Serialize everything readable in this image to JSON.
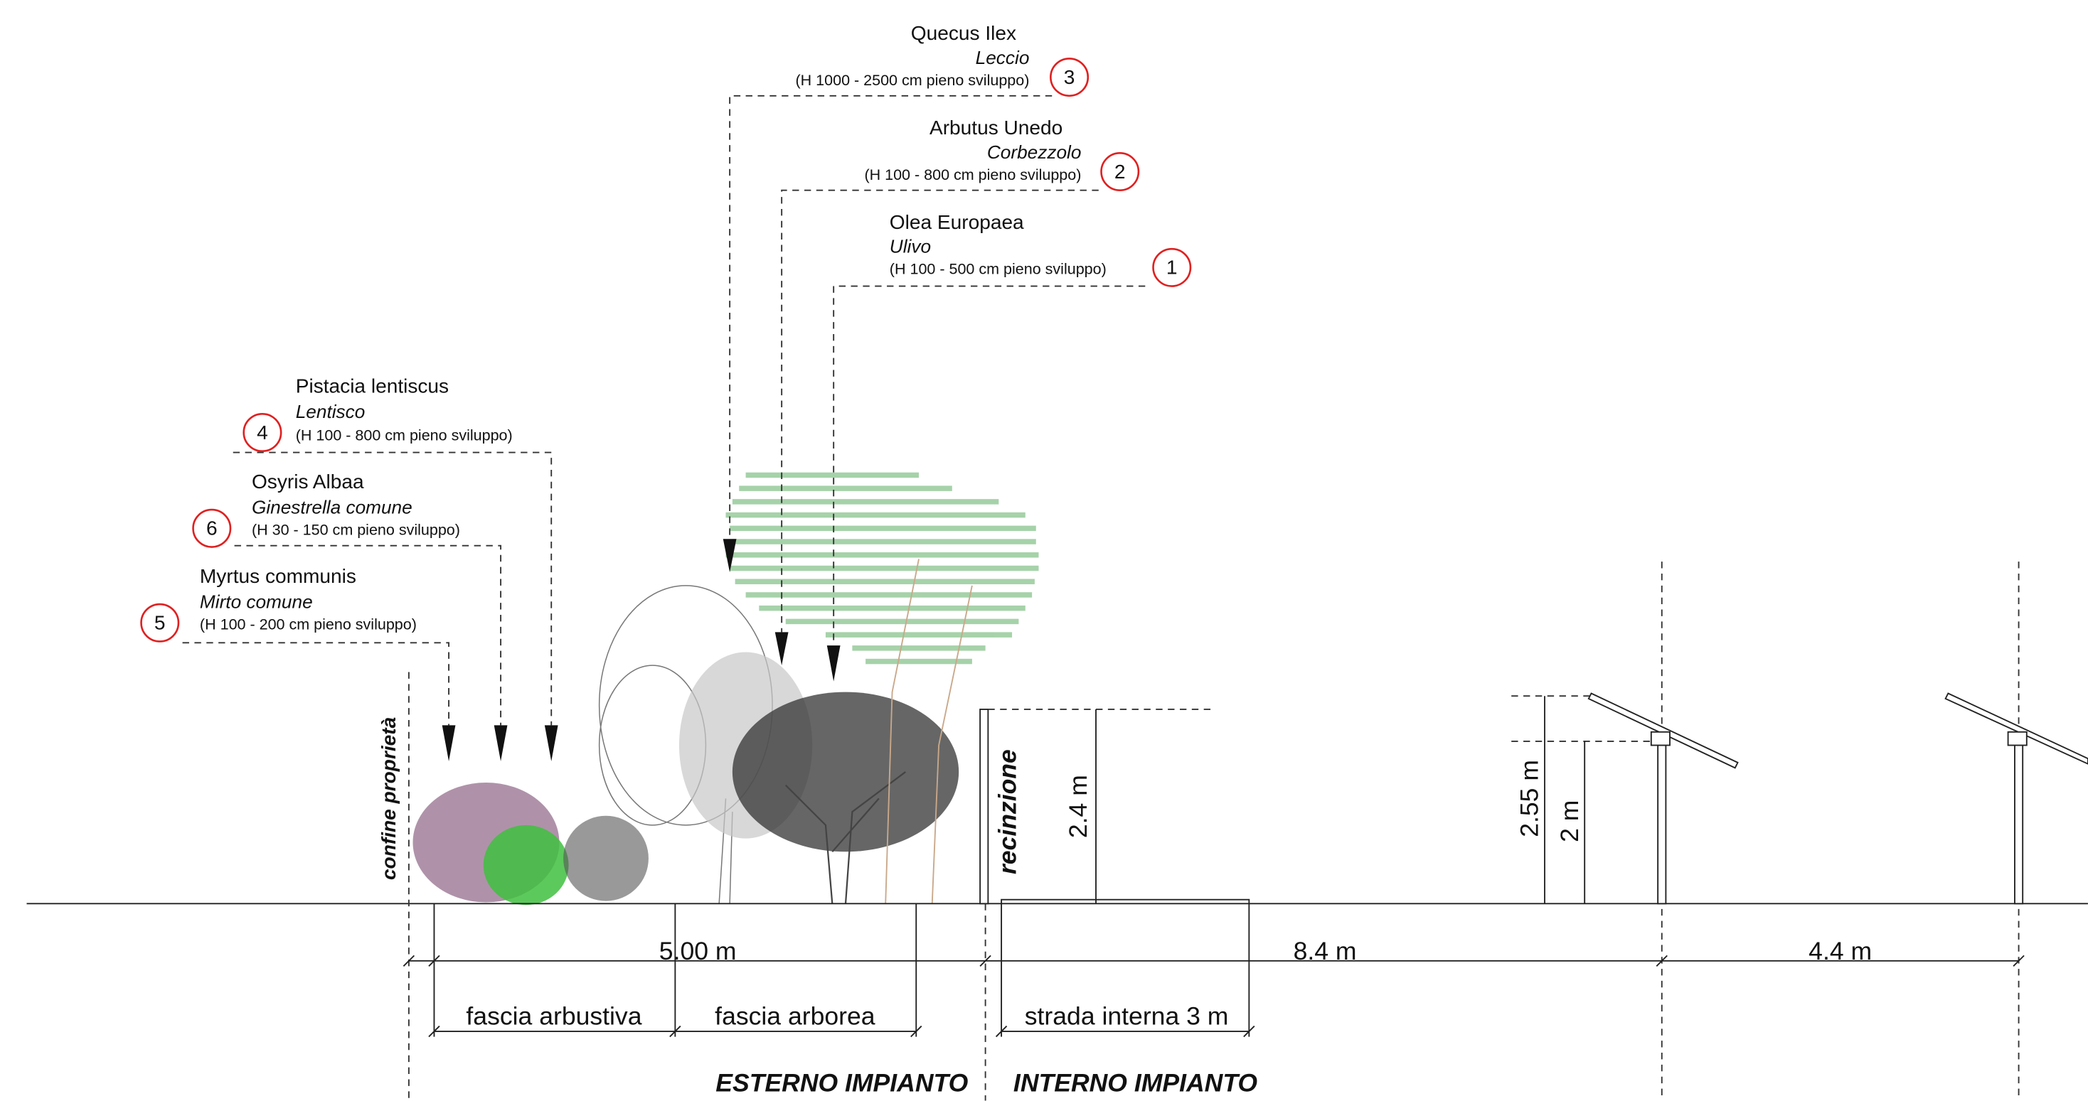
{
  "plants": [
    {
      "number": 3,
      "name": "Quecus Ilex",
      "common": "Leccio",
      "height": "(H 1000 - 2500 cm pieno sviluppo)"
    },
    {
      "number": 2,
      "name": "Arbutus Unedo",
      "common": "Corbezzolo",
      "height": "(H 100 - 800 cm pieno sviluppo)"
    },
    {
      "number": 1,
      "name": "Olea Europaea",
      "common": "Ulivo",
      "height": "(H 100 - 500 cm pieno sviluppo)"
    },
    {
      "number": 4,
      "name": "Pistacia lentiscus",
      "common": "Lentisco",
      "height": "(H 100 - 800 cm pieno sviluppo)"
    },
    {
      "number": 6,
      "name": "Osyris Albaa",
      "common": "Ginestrella comune",
      "height": "(H 30 - 150 cm pieno sviluppo)"
    },
    {
      "number": 5,
      "name": "Myrtus communis",
      "common": "Mirto comune",
      "height": "(H 100 - 200 cm pieno sviluppo)"
    }
  ],
  "dimensions": {
    "total": "5.00 m",
    "fence_height": "2.4 m",
    "road_to_panel": "8.4 m",
    "panel_spacing": "4.4 m",
    "panel_top": "2.55 m",
    "panel_axis": "2 m"
  },
  "labels": {
    "boundary": "confine proprietà",
    "fence": "recinzione",
    "shrub_band": "fascia arbustiva",
    "tree_band": "fascia arborea",
    "road": "strada interna 3 m",
    "outside": "ESTERNO IMPIANTO",
    "inside": "INTERNO IMPIANTO"
  }
}
